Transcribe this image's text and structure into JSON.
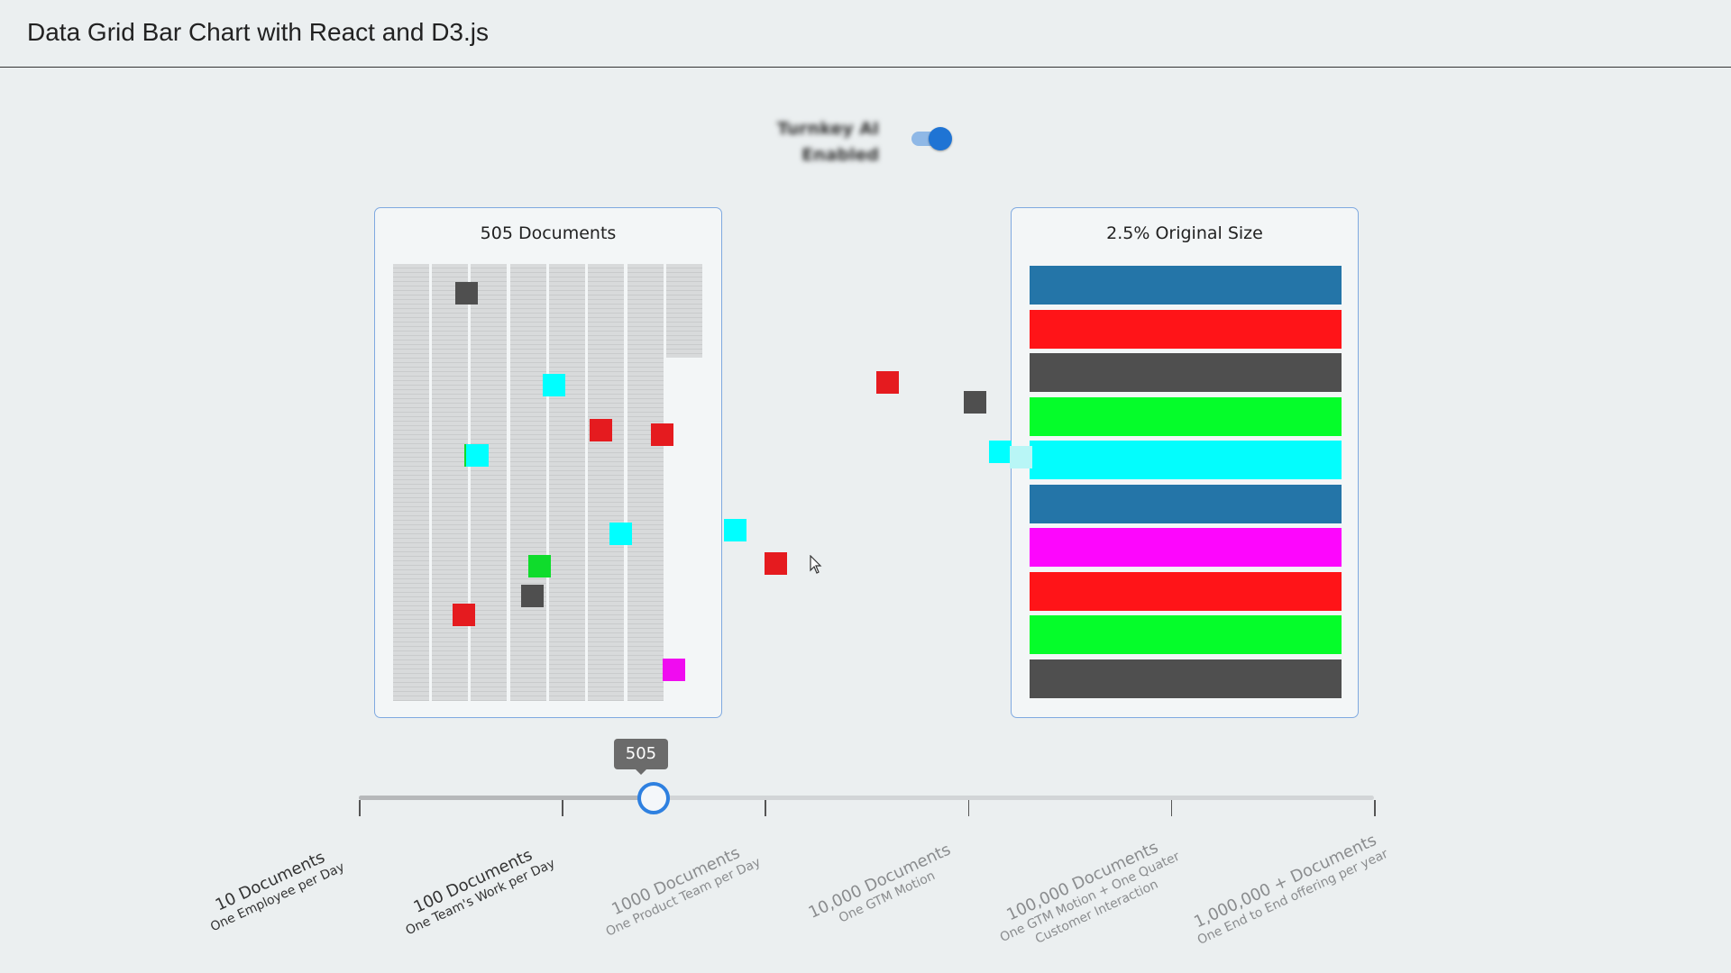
{
  "header": {
    "title": "Data Grid Bar Chart with React and D3.js"
  },
  "toggle": {
    "line1": "Turnkey AI",
    "line2": "Enabled",
    "on": true
  },
  "left_panel": {
    "title": "505 Documents"
  },
  "right_panel": {
    "title": "2.5% Original Size"
  },
  "bars": [
    {
      "color": "#2475a8"
    },
    {
      "color": "#ff1418"
    },
    {
      "color": "#4f4f4f"
    },
    {
      "color": "#05fd2a"
    },
    {
      "color": "#03fdfd"
    },
    {
      "color": "#2475a8"
    },
    {
      "color": "#fd06fd"
    },
    {
      "color": "#ff1418"
    },
    {
      "color": "#05fd2a"
    },
    {
      "color": "#4f4f4f"
    }
  ],
  "colors": {
    "dark": "#4f4f4f",
    "cyan": "#0ff",
    "red": "#e51b1f",
    "green": "#0fdc2c",
    "magenta": "#f00cf0"
  },
  "slider": {
    "value": "505",
    "fraction": 0.2895,
    "marks": [
      {
        "line1": "10 Documents",
        "line2": "One Employee per Day"
      },
      {
        "line1": "100 Documents",
        "line2": "One Team's Work per Day"
      },
      {
        "line1": "1000 Documents",
        "line2": "One Product Team per Day"
      },
      {
        "line1": "10,000 Documents",
        "line2": "One GTM Motion"
      },
      {
        "line1": "100,000 Documents",
        "line2": "One GTM Motion + One Quater Customer Interaction"
      },
      {
        "line1": "1,000,000 + Documents",
        "line2": "One End to End offering per year"
      }
    ]
  }
}
